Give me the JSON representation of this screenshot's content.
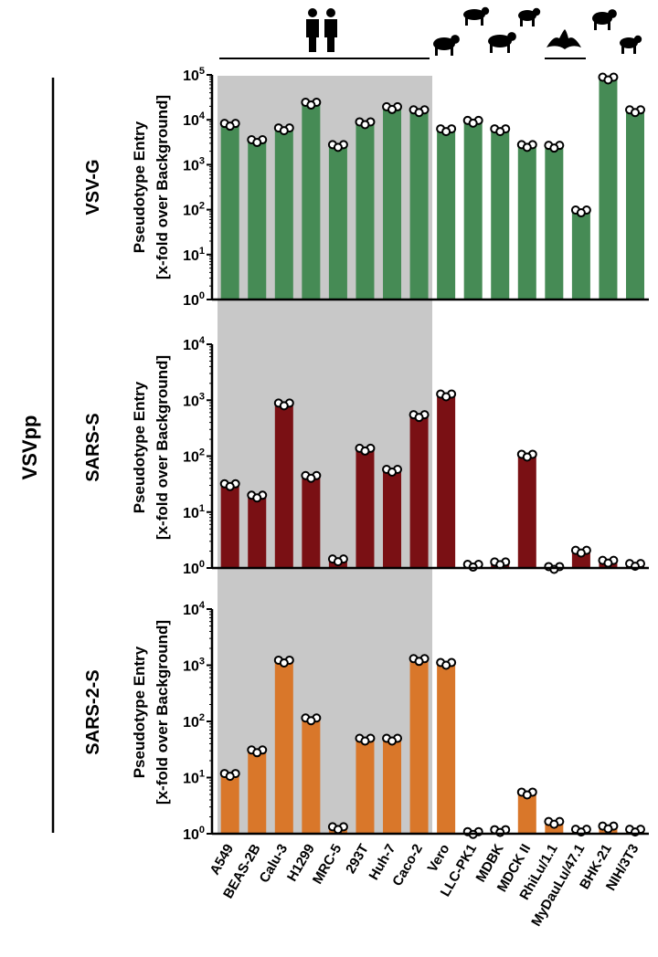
{
  "group_label": "VSVpp",
  "chart_data": {
    "type": "bar",
    "scale": "log",
    "grid": false,
    "categories": [
      "A549",
      "BEAS-2B",
      "Calu-3",
      "H1299",
      "MRC-5",
      "293T",
      "Huh-7",
      "Caco-2",
      "Vero",
      "LLC-PK1",
      "MDBK",
      "MDCK II",
      "RhiLu/1.1",
      "MyDauLu/47.1",
      "BHK-21",
      "NIH/3T3"
    ],
    "species_icons": [
      "human",
      "human",
      "human",
      "human",
      "human",
      "human",
      "human",
      "human",
      "monkey",
      "pig",
      "cow",
      "dog",
      "bat",
      "bat",
      "hamster",
      "mouse"
    ],
    "human_cell_lines_highlight": "#c8c8c8",
    "panels": [
      {
        "label": "VSV-G",
        "ylabel_line1": "Pseudotype Entry",
        "ylabel_line2": "[x-fold over Background]",
        "ylim": [
          1,
          100000
        ],
        "ticks": [
          "10^0",
          "10^1",
          "10^2",
          "10^3",
          "10^4",
          "10^5"
        ],
        "color": "#468b55",
        "values": [
          8300,
          3600,
          6600,
          24500,
          2800,
          9000,
          19500,
          16700,
          6300,
          9700,
          6300,
          2800,
          2700,
          98,
          89000,
          16700
        ]
      },
      {
        "label": "SARS-S",
        "ylabel_line1": "Pseudotype Entry",
        "ylabel_line2": "[x-fold over Background]",
        "ylim": [
          1,
          10000
        ],
        "ticks": [
          "10^0",
          "10^1",
          "10^2",
          "10^3",
          "10^4"
        ],
        "color": "#7a1014",
        "values": [
          32,
          20,
          890,
          45,
          1.45,
          138,
          58,
          550,
          1290,
          1.16,
          1.28,
          108,
          1.06,
          2.07,
          1.37,
          1.2
        ]
      },
      {
        "label": "SARS-2-S",
        "ylabel_line1": "Pseudotype Entry",
        "ylabel_line2": "[x-fold over Background]",
        "ylim": [
          1,
          10000
        ],
        "ticks": [
          "10^0",
          "10^1",
          "10^2",
          "10^3",
          "10^4"
        ],
        "color": "#d9772a",
        "values": [
          11.8,
          31,
          1230,
          115,
          1.33,
          50,
          50,
          1310,
          1120,
          1.09,
          1.18,
          5.5,
          1.65,
          1.2,
          1.37,
          1.2
        ]
      }
    ]
  }
}
